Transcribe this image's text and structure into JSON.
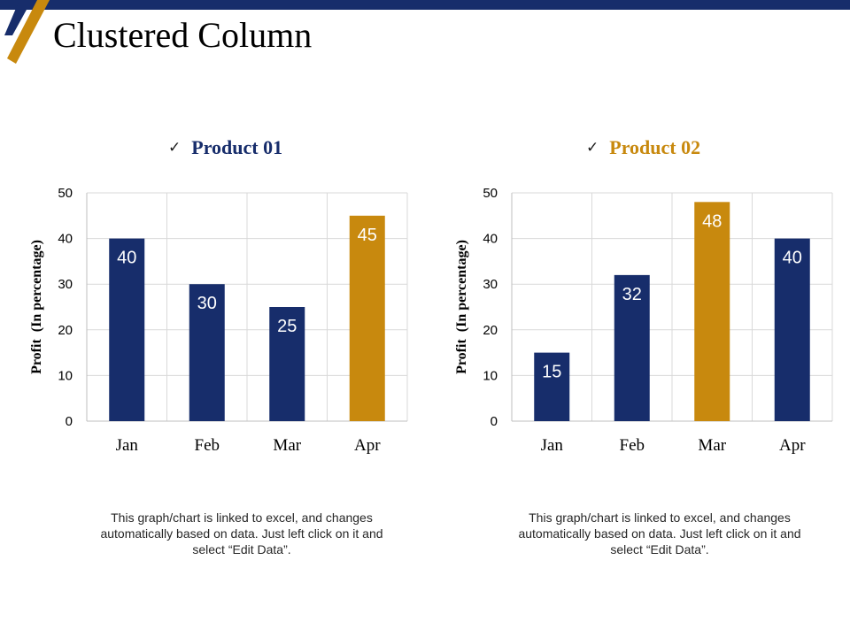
{
  "page": {
    "title": "Clustered Column"
  },
  "colors": {
    "navy": "#172d6b",
    "gold": "#c8890e",
    "grid": "#d9d9d9",
    "axis": "#bfbfbf"
  },
  "chart_data": [
    {
      "type": "bar",
      "title": "Product 01",
      "title_color": "#172d6b",
      "categories": [
        "Jan",
        "Feb",
        "Mar",
        "Apr"
      ],
      "values": [
        40,
        30,
        25,
        45
      ],
      "bar_colors": [
        "#172d6b",
        "#172d6b",
        "#172d6b",
        "#c8890e"
      ],
      "xlabel": "",
      "ylabel": "Profit  (In percentage)",
      "ylim": [
        0,
        50
      ],
      "yticks": [
        0,
        10,
        20,
        30,
        40,
        50
      ],
      "grid": true,
      "note": "This graph/chart is linked to excel, and changes automatically based on data. Just left click on it and select “Edit Data”."
    },
    {
      "type": "bar",
      "title": "Product 02",
      "title_color": "#c8890e",
      "categories": [
        "Jan",
        "Feb",
        "Mar",
        "Apr"
      ],
      "values": [
        15,
        32,
        48,
        40
      ],
      "bar_colors": [
        "#172d6b",
        "#172d6b",
        "#c8890e",
        "#172d6b"
      ],
      "xlabel": "",
      "ylabel": "Profit  (In percentage)",
      "ylim": [
        0,
        50
      ],
      "yticks": [
        0,
        10,
        20,
        30,
        40,
        50
      ],
      "grid": true,
      "note": "This graph/chart is linked to excel, and changes automatically based on data. Just left click on it and select “Edit Data”."
    }
  ]
}
